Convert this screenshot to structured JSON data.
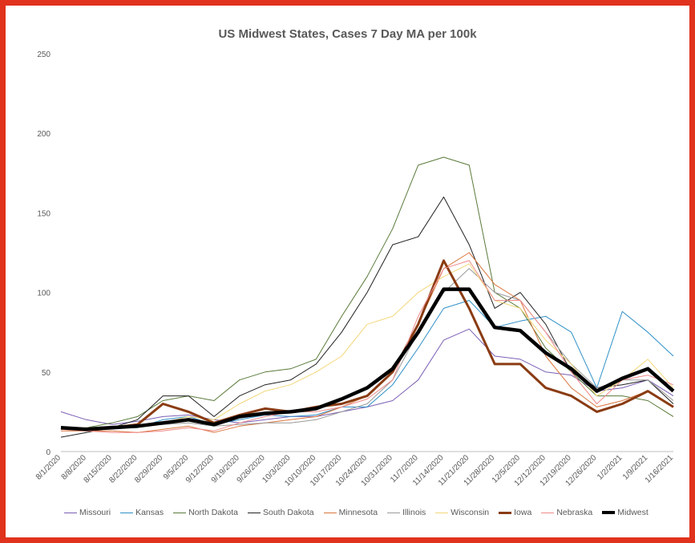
{
  "chart_data": {
    "type": "line",
    "title": "US Midwest States, Cases 7 Day MA per 100k",
    "xlabel": "",
    "ylabel": "",
    "ylim": [
      0,
      250
    ],
    "yticks": [
      "0",
      "50",
      "100",
      "150",
      "200",
      "250"
    ],
    "xticks": [
      "8/1/2020",
      "8/8/2020",
      "8/15/2020",
      "8/22/2020",
      "8/29/2020",
      "9/5/2020",
      "9/12/2020",
      "9/19/2020",
      "9/26/2020",
      "10/3/2020",
      "10/10/2020",
      "10/17/2020",
      "10/24/2020",
      "10/31/2020",
      "11/7/2020",
      "11/14/2020",
      "11/21/2020",
      "11/28/2020",
      "12/5/2020",
      "12/12/2020",
      "12/19/2020",
      "12/26/2020",
      "1/2/2021",
      "1/9/2021",
      "1/16/2021"
    ],
    "legend_position": "bottom",
    "series": [
      {
        "name": "Missouri",
        "color": "#7b5fb5",
        "width": 1,
        "values": [
          25,
          20,
          17,
          19,
          22,
          23,
          20,
          18,
          20,
          22,
          22,
          25,
          28,
          32,
          45,
          70,
          77,
          60,
          58,
          50,
          48,
          38,
          40,
          45,
          35
        ]
      },
      {
        "name": "Kansas",
        "color": "#2e8fc7",
        "width": 1,
        "values": [
          14,
          14,
          15,
          15,
          20,
          22,
          17,
          20,
          23,
          22,
          23,
          28,
          28,
          42,
          65,
          90,
          95,
          78,
          82,
          85,
          75,
          40,
          88,
          75,
          60
        ]
      },
      {
        "name": "North Dakota",
        "color": "#5a7a3a",
        "width": 1,
        "values": [
          14,
          15,
          18,
          22,
          32,
          35,
          32,
          45,
          50,
          52,
          58,
          85,
          110,
          140,
          180,
          185,
          180,
          100,
          90,
          65,
          50,
          35,
          35,
          32,
          22
        ]
      },
      {
        "name": "South Dakota",
        "color": "#222222",
        "width": 1,
        "values": [
          9,
          12,
          15,
          20,
          35,
          35,
          22,
          35,
          42,
          45,
          55,
          75,
          100,
          130,
          135,
          160,
          130,
          90,
          100,
          80,
          50,
          40,
          42,
          45,
          30
        ]
      },
      {
        "name": "Minnesota",
        "color": "#d9763d",
        "width": 1,
        "values": [
          13,
          13,
          13,
          12,
          14,
          16,
          12,
          16,
          18,
          20,
          22,
          28,
          35,
          50,
          80,
          115,
          125,
          105,
          95,
          60,
          40,
          28,
          32,
          38,
          28
        ]
      },
      {
        "name": "Illinois",
        "color": "#9a9a9a",
        "width": 1,
        "values": [
          14,
          15,
          16,
          16,
          17,
          18,
          16,
          17,
          18,
          18,
          20,
          25,
          30,
          45,
          75,
          100,
          115,
          100,
          95,
          75,
          55,
          40,
          45,
          45,
          32
        ]
      },
      {
        "name": "Wisconsin",
        "color": "#f3d77a",
        "width": 1,
        "values": [
          15,
          15,
          15,
          16,
          18,
          22,
          20,
          30,
          38,
          42,
          50,
          60,
          80,
          85,
          100,
          110,
          118,
          95,
          90,
          70,
          55,
          35,
          45,
          58,
          40
        ]
      },
      {
        "name": "Iowa",
        "color": "#8a3b12",
        "width": 3,
        "values": [
          15,
          14,
          15,
          17,
          30,
          25,
          18,
          23,
          27,
          25,
          28,
          30,
          35,
          50,
          80,
          120,
          90,
          55,
          55,
          40,
          35,
          25,
          30,
          38,
          28
        ]
      },
      {
        "name": "Nebraska",
        "color": "#f08a8a",
        "width": 1,
        "values": [
          14,
          13,
          12,
          12,
          13,
          15,
          13,
          18,
          22,
          25,
          25,
          28,
          33,
          45,
          85,
          115,
          120,
          95,
          95,
          75,
          50,
          30,
          45,
          48,
          42
        ]
      },
      {
        "name": "Midwest",
        "color": "#000000",
        "width": 4.5,
        "values": [
          15,
          14,
          15,
          16,
          18,
          20,
          17,
          22,
          24,
          25,
          27,
          33,
          40,
          52,
          75,
          102,
          102,
          78,
          76,
          62,
          52,
          38,
          46,
          52,
          38
        ]
      }
    ]
  }
}
